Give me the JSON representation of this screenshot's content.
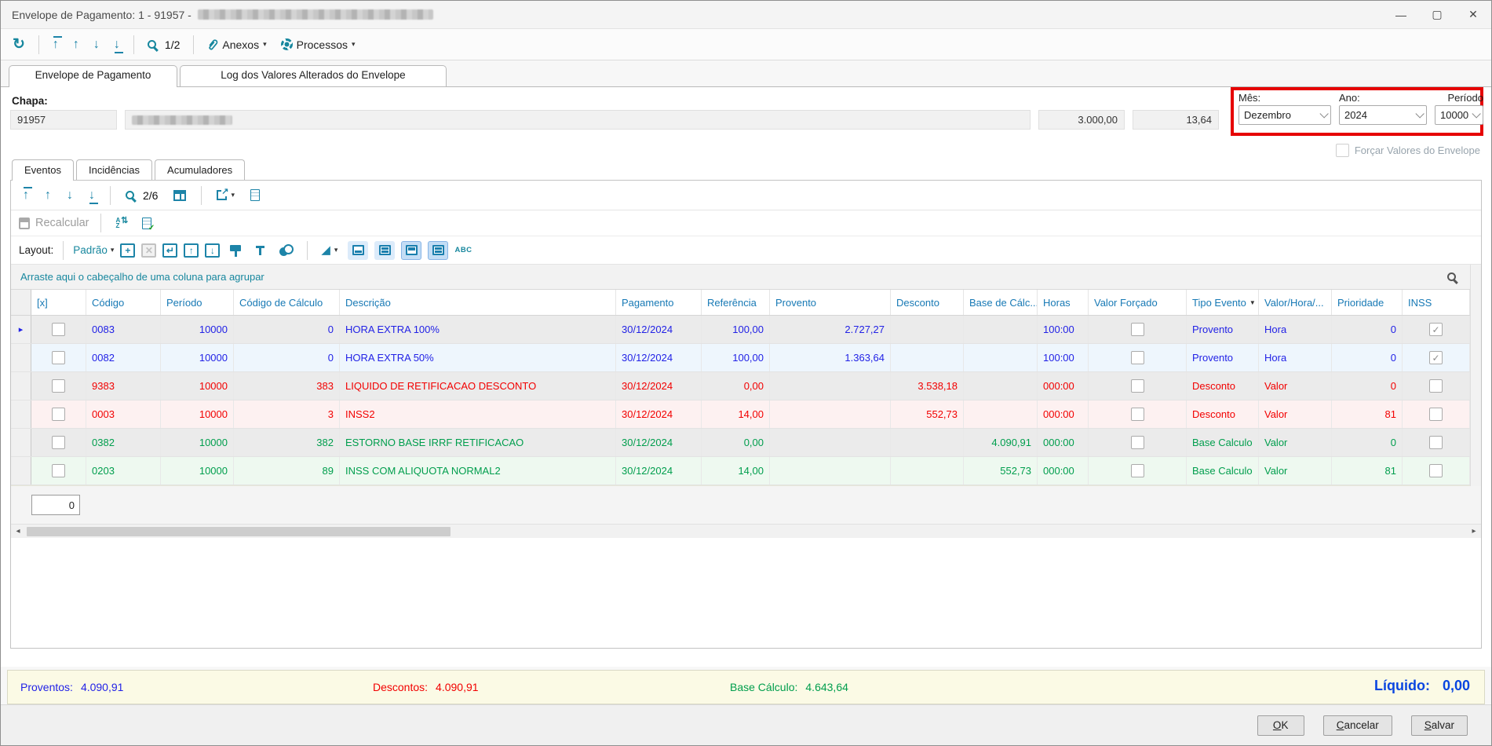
{
  "window": {
    "title_prefix": "Envelope de Pagamento: 1 - 91957 -",
    "controls": {
      "minimize": "—",
      "maximize": "▢",
      "close": "✕"
    }
  },
  "colors": {
    "accent_teal": "#17879e",
    "highlight_red": "#e60000",
    "grid_blue": "#2222e6",
    "grid_red": "#f20000",
    "grid_green": "#009e4d",
    "footer_cream": "#fbfae5"
  },
  "main_toolbar": {
    "pager": "1/2",
    "anexos": "Anexos",
    "processos": "Processos"
  },
  "doc_tabs": [
    {
      "label": "Envelope de Pagamento",
      "active": true
    },
    {
      "label": "Log dos Valores Alterados do Envelope",
      "active": false
    }
  ],
  "chapa": {
    "label": "Chapa:",
    "numero": "91957",
    "valor1": "3.000,00",
    "valor2": "13,64"
  },
  "period_box": {
    "mes_label": "Mês:",
    "mes": "Dezembro",
    "ano_label": "Ano:",
    "ano": "2024",
    "periodo_label": "Período",
    "periodo": "10000"
  },
  "forcar": {
    "label": "Forçar Valores do Envelope",
    "checked": false
  },
  "inner_tabs": [
    {
      "label": "Eventos",
      "active": true
    },
    {
      "label": "Incidências",
      "active": false
    },
    {
      "label": "Acumuladores",
      "active": false
    }
  ],
  "grid_toolbar": {
    "pager": "2/6"
  },
  "actions": {
    "recalcular": "Recalcular",
    "layout_label": "Layout:",
    "layout_value": "Padrão",
    "abc": "ABC"
  },
  "group_bar": {
    "text": "Arraste aqui o cabeçalho de uma coluna para agrupar"
  },
  "table": {
    "columns": [
      {
        "label": "[x]"
      },
      {
        "label": "Código"
      },
      {
        "label": "Período"
      },
      {
        "label": "Código de Cálculo"
      },
      {
        "label": "Descrição"
      },
      {
        "label": "Pagamento"
      },
      {
        "label": "Referência"
      },
      {
        "label": "Provento"
      },
      {
        "label": "Desconto"
      },
      {
        "label": "Base de Cálc..."
      },
      {
        "label": "Horas"
      },
      {
        "label": "Valor Forçado"
      },
      {
        "label": "Tipo Evento",
        "sort": "desc"
      },
      {
        "label": "Valor/Hora/..."
      },
      {
        "label": "Prioridade"
      },
      {
        "label": "INSS"
      }
    ],
    "rows": [
      {
        "selected": true,
        "text_color": "blue",
        "row_tint": "gray",
        "codigo": "0083",
        "periodo": "10000",
        "codigo_calculo": "0",
        "descricao": "HORA EXTRA 100%",
        "pagamento": "30/12/2024",
        "referencia": "100,00",
        "provento": "2.727,27",
        "desconto": "",
        "base_calculo": "",
        "horas": "100:00",
        "valor_forcado": false,
        "tipo_evento": "Provento",
        "valor_hora": "Hora",
        "prioridade": "0",
        "inss": true
      },
      {
        "selected": false,
        "text_color": "blue",
        "row_tint": "blue",
        "codigo": "0082",
        "periodo": "10000",
        "codigo_calculo": "0",
        "descricao": "HORA EXTRA 50%",
        "pagamento": "30/12/2024",
        "referencia": "100,00",
        "provento": "1.363,64",
        "desconto": "",
        "base_calculo": "",
        "horas": "100:00",
        "valor_forcado": false,
        "tipo_evento": "Provento",
        "valor_hora": "Hora",
        "prioridade": "0",
        "inss": true
      },
      {
        "selected": false,
        "text_color": "red",
        "row_tint": "gray",
        "codigo": "9383",
        "periodo": "10000",
        "codigo_calculo": "383",
        "descricao": "LIQUIDO DE RETIFICACAO DESCONTO",
        "pagamento": "30/12/2024",
        "referencia": "0,00",
        "provento": "",
        "desconto": "3.538,18",
        "base_calculo": "",
        "horas": "000:00",
        "valor_forcado": false,
        "tipo_evento": "Desconto",
        "valor_hora": "Valor",
        "prioridade": "0",
        "inss": false
      },
      {
        "selected": false,
        "text_color": "red",
        "row_tint": "pink",
        "codigo": "0003",
        "periodo": "10000",
        "codigo_calculo": "3",
        "descricao": "INSS2",
        "pagamento": "30/12/2024",
        "referencia": "14,00",
        "provento": "",
        "desconto": "552,73",
        "base_calculo": "",
        "horas": "000:00",
        "valor_forcado": false,
        "tipo_evento": "Desconto",
        "valor_hora": "Valor",
        "prioridade": "81",
        "inss": false
      },
      {
        "selected": false,
        "text_color": "green",
        "row_tint": "gray",
        "codigo": "0382",
        "periodo": "10000",
        "codigo_calculo": "382",
        "descricao": "ESTORNO BASE IRRF RETIFICACAO",
        "pagamento": "30/12/2024",
        "referencia": "0,00",
        "provento": "",
        "desconto": "",
        "base_calculo": "4.090,91",
        "horas": "000:00",
        "valor_forcado": false,
        "tipo_evento": "Base Calculo",
        "valor_hora": "Valor",
        "prioridade": "0",
        "inss": false
      },
      {
        "selected": false,
        "text_color": "green",
        "row_tint": "green",
        "codigo": "0203",
        "periodo": "10000",
        "codigo_calculo": "89",
        "descricao": "INSS COM ALIQUOTA NORMAL2",
        "pagamento": "30/12/2024",
        "referencia": "14,00",
        "provento": "",
        "desconto": "",
        "base_calculo": "552,73",
        "horas": "000:00",
        "valor_forcado": false,
        "tipo_evento": "Base Calculo",
        "valor_hora": "Valor",
        "prioridade": "81",
        "inss": false
      }
    ]
  },
  "pagination_field": {
    "value": "0"
  },
  "totals": {
    "proventos_label": "Proventos:",
    "proventos": "4.090,91",
    "descontos_label": "Descontos:",
    "descontos": "4.090,91",
    "base_label": "Base Cálculo:",
    "base": "4.643,64",
    "liquido_label": "Líquido:",
    "liquido": "0,00"
  },
  "footer_buttons": [
    {
      "label": "OK"
    },
    {
      "label": "Cancelar"
    },
    {
      "label": "Salvar"
    }
  ],
  "icons": {
    "refresh": "↻",
    "arrow_up": "↑",
    "arrow_down": "↓",
    "scroll_left": "◂",
    "scroll_right": "▸",
    "row_indicator": "▸",
    "sort_desc": "▼",
    "check": "✓",
    "caret_down": "▾",
    "chart": "◢"
  }
}
